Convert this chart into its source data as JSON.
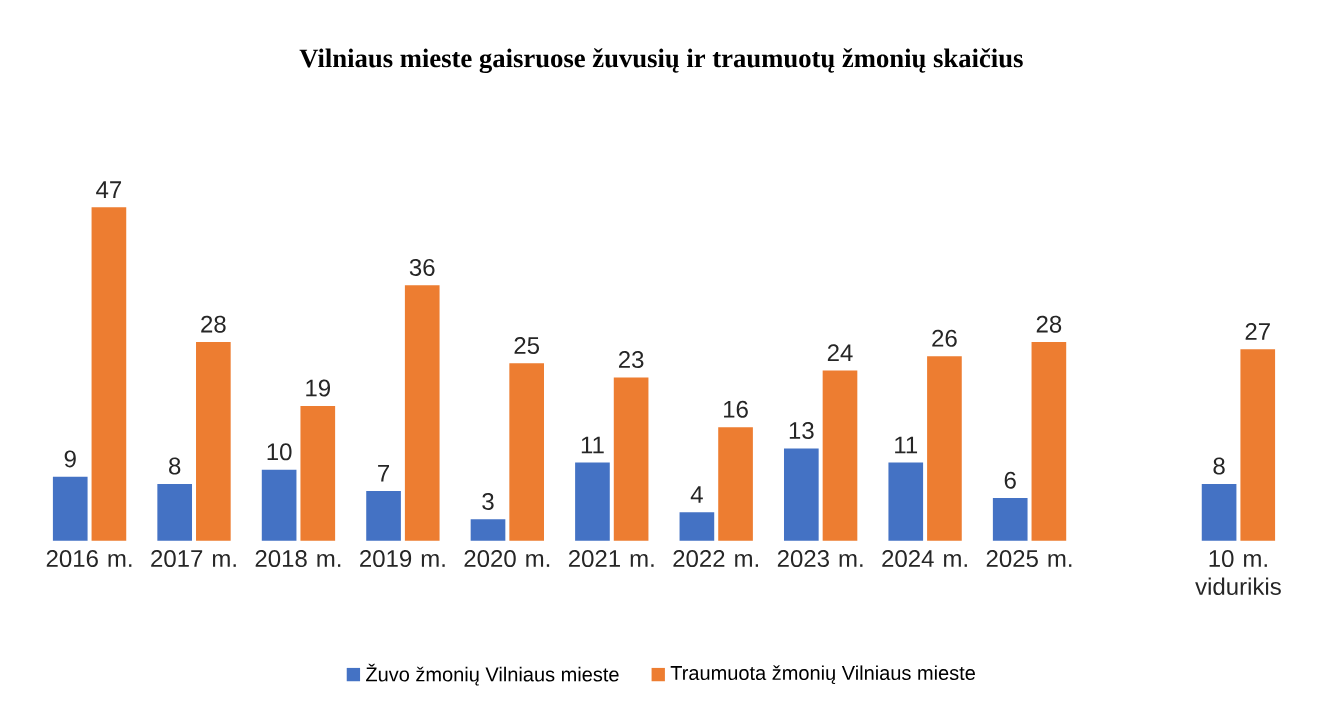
{
  "chart_data": {
    "type": "bar",
    "title": "Vilniaus mieste gaisruose žuvusių ir traumuotų žmonių skaičius",
    "categories": [
      "2016 m.",
      "2017 m.",
      "2018 m.",
      "2019 m.",
      "2020 m.",
      "2021 m.",
      "2022 m.",
      "2023 m.",
      "2024 m.",
      "2025 m.",
      null,
      "10 m. vidurikis"
    ],
    "series": [
      {
        "name": "Žuvo žmonių Vilniaus mieste",
        "color": "#4472c4",
        "values": [
          9,
          8,
          10,
          7,
          3,
          11,
          4,
          13,
          11,
          6,
          null,
          8
        ]
      },
      {
        "name": "Traumuota žmonių Vilniaus mieste",
        "color": "#ed7d31",
        "values": [
          47,
          28,
          19,
          36,
          25,
          23,
          16,
          24,
          26,
          28,
          null,
          27
        ]
      }
    ],
    "data_labels": true,
    "legend": "bottom",
    "grid": false
  }
}
